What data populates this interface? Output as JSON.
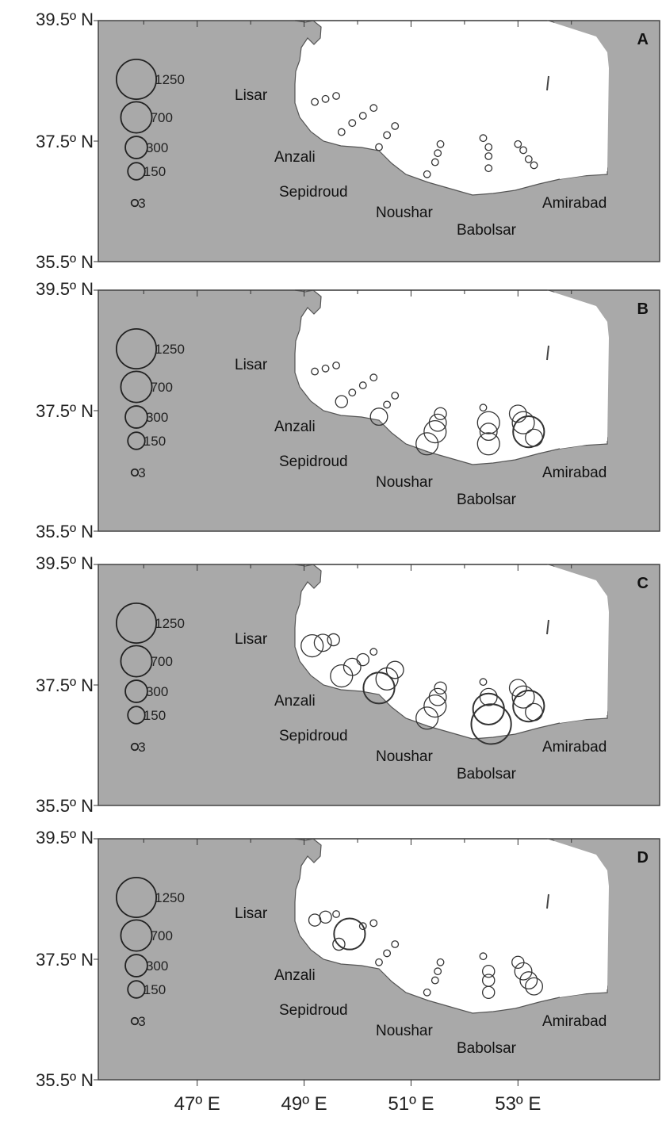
{
  "panels": [
    {
      "letter": "A",
      "y_top_label": "39.5º N",
      "y_mid_label": "37.5º N",
      "y_bottom_label": "35.5º N",
      "sites": [
        "Lisar",
        "Anzali",
        "Sepidroud",
        "Noushar",
        "Babolsar",
        "Amirabad"
      ],
      "legend": [
        "1250",
        "700",
        "300",
        "150",
        "3"
      ],
      "stations": [
        {
          "lon": 49.2,
          "lat": 38.15,
          "v": 3
        },
        {
          "lon": 49.4,
          "lat": 38.2,
          "v": 3
        },
        {
          "lon": 49.6,
          "lat": 38.25,
          "v": 3
        },
        {
          "lon": 49.7,
          "lat": 37.65,
          "v": 3
        },
        {
          "lon": 49.9,
          "lat": 37.8,
          "v": 3
        },
        {
          "lon": 50.1,
          "lat": 37.92,
          "v": 3
        },
        {
          "lon": 50.3,
          "lat": 38.05,
          "v": 3
        },
        {
          "lon": 50.4,
          "lat": 37.4,
          "v": 3
        },
        {
          "lon": 50.55,
          "lat": 37.6,
          "v": 3
        },
        {
          "lon": 50.7,
          "lat": 37.75,
          "v": 3
        },
        {
          "lon": 51.3,
          "lat": 36.95,
          "v": 3
        },
        {
          "lon": 51.45,
          "lat": 37.15,
          "v": 3
        },
        {
          "lon": 51.5,
          "lat": 37.3,
          "v": 3
        },
        {
          "lon": 51.55,
          "lat": 37.45,
          "v": 3
        },
        {
          "lon": 52.35,
          "lat": 37.55,
          "v": 3
        },
        {
          "lon": 52.45,
          "lat": 37.4,
          "v": 3
        },
        {
          "lon": 52.45,
          "lat": 37.25,
          "v": 3
        },
        {
          "lon": 52.45,
          "lat": 37.05,
          "v": 3
        },
        {
          "lon": 53.0,
          "lat": 37.45,
          "v": 3
        },
        {
          "lon": 53.1,
          "lat": 37.35,
          "v": 3
        },
        {
          "lon": 53.2,
          "lat": 37.2,
          "v": 3
        },
        {
          "lon": 53.3,
          "lat": 37.1,
          "v": 3
        }
      ]
    },
    {
      "letter": "B",
      "y_top_label": "39.5º N",
      "y_mid_label": "37.5º N",
      "y_bottom_label": "35.5º N",
      "sites": [
        "Lisar",
        "Anzali",
        "Sepidroud",
        "Noushar",
        "Babolsar",
        "Amirabad"
      ],
      "legend": [
        "1250",
        "700",
        "300",
        "150",
        "3"
      ],
      "stations": [
        {
          "lon": 49.2,
          "lat": 38.15,
          "v": 3
        },
        {
          "lon": 49.4,
          "lat": 38.2,
          "v": 3
        },
        {
          "lon": 49.6,
          "lat": 38.25,
          "v": 3
        },
        {
          "lon": 49.7,
          "lat": 37.65,
          "v": 50
        },
        {
          "lon": 49.9,
          "lat": 37.8,
          "v": 3
        },
        {
          "lon": 50.1,
          "lat": 37.92,
          "v": 3
        },
        {
          "lon": 50.3,
          "lat": 38.05,
          "v": 3
        },
        {
          "lon": 50.4,
          "lat": 37.4,
          "v": 150
        },
        {
          "lon": 50.55,
          "lat": 37.6,
          "v": 3
        },
        {
          "lon": 50.7,
          "lat": 37.75,
          "v": 3
        },
        {
          "lon": 51.3,
          "lat": 36.95,
          "v": 300
        },
        {
          "lon": 51.45,
          "lat": 37.15,
          "v": 300
        },
        {
          "lon": 51.5,
          "lat": 37.3,
          "v": 150
        },
        {
          "lon": 51.55,
          "lat": 37.45,
          "v": 50
        },
        {
          "lon": 52.35,
          "lat": 37.55,
          "v": 3
        },
        {
          "lon": 52.45,
          "lat": 37.3,
          "v": 300
        },
        {
          "lon": 52.45,
          "lat": 37.15,
          "v": 150
        },
        {
          "lon": 52.45,
          "lat": 36.95,
          "v": 300
        },
        {
          "lon": 53.0,
          "lat": 37.45,
          "v": 150
        },
        {
          "lon": 53.1,
          "lat": 37.3,
          "v": 300
        },
        {
          "lon": 53.2,
          "lat": 37.15,
          "v": 700
        },
        {
          "lon": 53.3,
          "lat": 37.05,
          "v": 150
        }
      ]
    },
    {
      "letter": "C",
      "y_top_label": "39.5º N",
      "y_mid_label": "37.5º N",
      "y_bottom_label": "35.5º N",
      "sites": [
        "Lisar",
        "Anzali",
        "Sepidroud",
        "Noushar",
        "Babolsar",
        "Amirabad"
      ],
      "legend": [
        "1250",
        "700",
        "300",
        "150",
        "3"
      ],
      "stations": [
        {
          "lon": 49.15,
          "lat": 38.15,
          "v": 300
        },
        {
          "lon": 49.35,
          "lat": 38.2,
          "v": 150
        },
        {
          "lon": 49.55,
          "lat": 38.25,
          "v": 50
        },
        {
          "lon": 49.7,
          "lat": 37.65,
          "v": 300
        },
        {
          "lon": 49.9,
          "lat": 37.8,
          "v": 150
        },
        {
          "lon": 50.1,
          "lat": 37.92,
          "v": 50
        },
        {
          "lon": 50.3,
          "lat": 38.05,
          "v": 3
        },
        {
          "lon": 50.4,
          "lat": 37.45,
          "v": 700
        },
        {
          "lon": 50.55,
          "lat": 37.6,
          "v": 300
        },
        {
          "lon": 50.7,
          "lat": 37.75,
          "v": 150
        },
        {
          "lon": 51.3,
          "lat": 36.95,
          "v": 300
        },
        {
          "lon": 51.45,
          "lat": 37.15,
          "v": 300
        },
        {
          "lon": 51.5,
          "lat": 37.3,
          "v": 150
        },
        {
          "lon": 51.55,
          "lat": 37.45,
          "v": 50
        },
        {
          "lon": 52.35,
          "lat": 37.55,
          "v": 3
        },
        {
          "lon": 52.45,
          "lat": 37.3,
          "v": 150
        },
        {
          "lon": 52.45,
          "lat": 37.1,
          "v": 700
        },
        {
          "lon": 52.5,
          "lat": 36.85,
          "v": 1250
        },
        {
          "lon": 53.0,
          "lat": 37.45,
          "v": 150
        },
        {
          "lon": 53.1,
          "lat": 37.3,
          "v": 300
        },
        {
          "lon": 53.2,
          "lat": 37.15,
          "v": 700
        },
        {
          "lon": 53.3,
          "lat": 37.05,
          "v": 150
        }
      ]
    },
    {
      "letter": "D",
      "y_top_label": "39.5º N",
      "y_mid_label": "37.5º N",
      "y_bottom_label": "35.5º N",
      "sites": [
        "Lisar",
        "Anzali",
        "Sepidroud",
        "Noushar",
        "Babolsar",
        "Amirabad"
      ],
      "legend": [
        "1250",
        "700",
        "300",
        "150",
        "3"
      ],
      "stations": [
        {
          "lon": 49.2,
          "lat": 38.15,
          "v": 50
        },
        {
          "lon": 49.4,
          "lat": 38.2,
          "v": 50
        },
        {
          "lon": 49.6,
          "lat": 38.25,
          "v": 3
        },
        {
          "lon": 49.65,
          "lat": 37.75,
          "v": 50
        },
        {
          "lon": 49.85,
          "lat": 37.92,
          "v": 700
        },
        {
          "lon": 50.1,
          "lat": 38.05,
          "v": 3
        },
        {
          "lon": 50.3,
          "lat": 38.1,
          "v": 3
        },
        {
          "lon": 50.4,
          "lat": 37.45,
          "v": 3
        },
        {
          "lon": 50.55,
          "lat": 37.6,
          "v": 3
        },
        {
          "lon": 50.7,
          "lat": 37.75,
          "v": 3
        },
        {
          "lon": 51.3,
          "lat": 36.95,
          "v": 3
        },
        {
          "lon": 51.45,
          "lat": 37.15,
          "v": 3
        },
        {
          "lon": 51.5,
          "lat": 37.3,
          "v": 3
        },
        {
          "lon": 51.55,
          "lat": 37.45,
          "v": 3
        },
        {
          "lon": 52.35,
          "lat": 37.55,
          "v": 3
        },
        {
          "lon": 52.45,
          "lat": 37.3,
          "v": 50
        },
        {
          "lon": 52.45,
          "lat": 37.15,
          "v": 50
        },
        {
          "lon": 52.45,
          "lat": 36.95,
          "v": 50
        },
        {
          "lon": 53.0,
          "lat": 37.45,
          "v": 50
        },
        {
          "lon": 53.1,
          "lat": 37.3,
          "v": 150
        },
        {
          "lon": 53.2,
          "lat": 37.15,
          "v": 150
        },
        {
          "lon": 53.3,
          "lat": 37.05,
          "v": 150
        }
      ]
    }
  ],
  "x_ticks": [
    "47º E",
    "49º E",
    "51º E",
    "53º E"
  ],
  "colors": {
    "sea": "#a9a9a9",
    "land": "#ffffff",
    "frame": "#444444",
    "circle": "#333333"
  }
}
